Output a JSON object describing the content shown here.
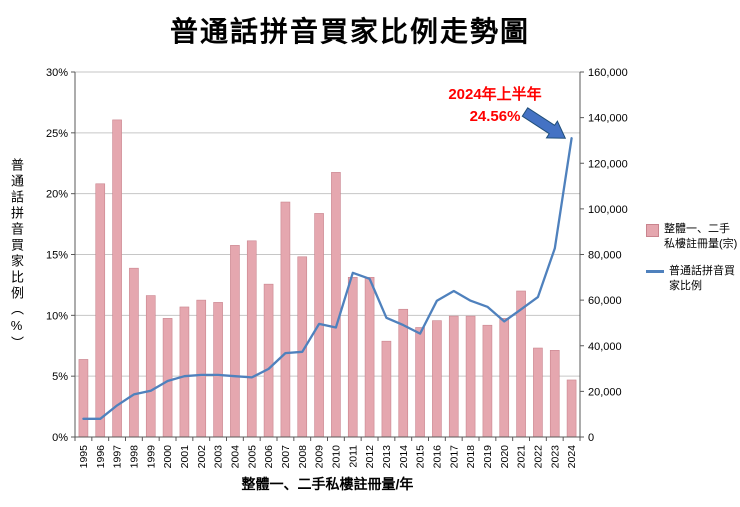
{
  "title": "普通話拼音買家比例走勢圖",
  "chart_data": {
    "type": "bar+line",
    "categories": [
      "1995",
      "1996",
      "1997",
      "1998",
      "1999",
      "2000",
      "2001",
      "2002",
      "2003",
      "2004",
      "2005",
      "2006",
      "2007",
      "2008",
      "2009",
      "2010",
      "2011",
      "2012",
      "2013",
      "2014",
      "2015",
      "2016",
      "2017",
      "2018",
      "2019",
      "2020",
      "2021",
      "2022",
      "2023",
      "2024"
    ],
    "series": [
      {
        "name": "整體一、二手私樓註冊量(宗)",
        "type": "bar",
        "axis": "right",
        "color": "#E5A7AF",
        "border_color": "#C9848E",
        "values": [
          34000,
          111000,
          139000,
          74000,
          62000,
          52000,
          57000,
          60000,
          59000,
          84000,
          86000,
          67000,
          103000,
          79000,
          98000,
          116000,
          70000,
          70000,
          42000,
          56000,
          48000,
          51000,
          53000,
          53000,
          49000,
          52000,
          64000,
          39000,
          38000,
          25000
        ]
      },
      {
        "name": "普通話拼音買家比例",
        "type": "line",
        "axis": "left",
        "color": "#4F81BD",
        "values": [
          1.5,
          1.5,
          2.6,
          3.5,
          3.8,
          4.6,
          5.0,
          5.1,
          5.1,
          5.0,
          4.9,
          5.6,
          6.9,
          7.0,
          9.3,
          9.0,
          13.5,
          13.0,
          9.8,
          9.2,
          8.5,
          11.2,
          12.0,
          11.2,
          10.7,
          9.5,
          10.5,
          11.5,
          15.5,
          24.56
        ]
      }
    ],
    "left_axis": {
      "label": "普通話拼音買家比例（%）",
      "min": 0,
      "max": 30,
      "ticks": [
        "0%",
        "5%",
        "10%",
        "15%",
        "20%",
        "25%",
        "30%"
      ]
    },
    "right_axis": {
      "min": 0,
      "max": 160000,
      "ticks": [
        "0",
        "20,000",
        "40,000",
        "60,000",
        "80,000",
        "100,000",
        "120,000",
        "140,000",
        "160,000"
      ]
    },
    "xlabel": "整體一、二手私樓註冊量/年",
    "annotation": {
      "line1": "2024年上半年",
      "line2": "24.56%",
      "color": "#FF0000",
      "arrow_color": "#4472C4"
    },
    "grid": true,
    "legend_position": "right"
  }
}
